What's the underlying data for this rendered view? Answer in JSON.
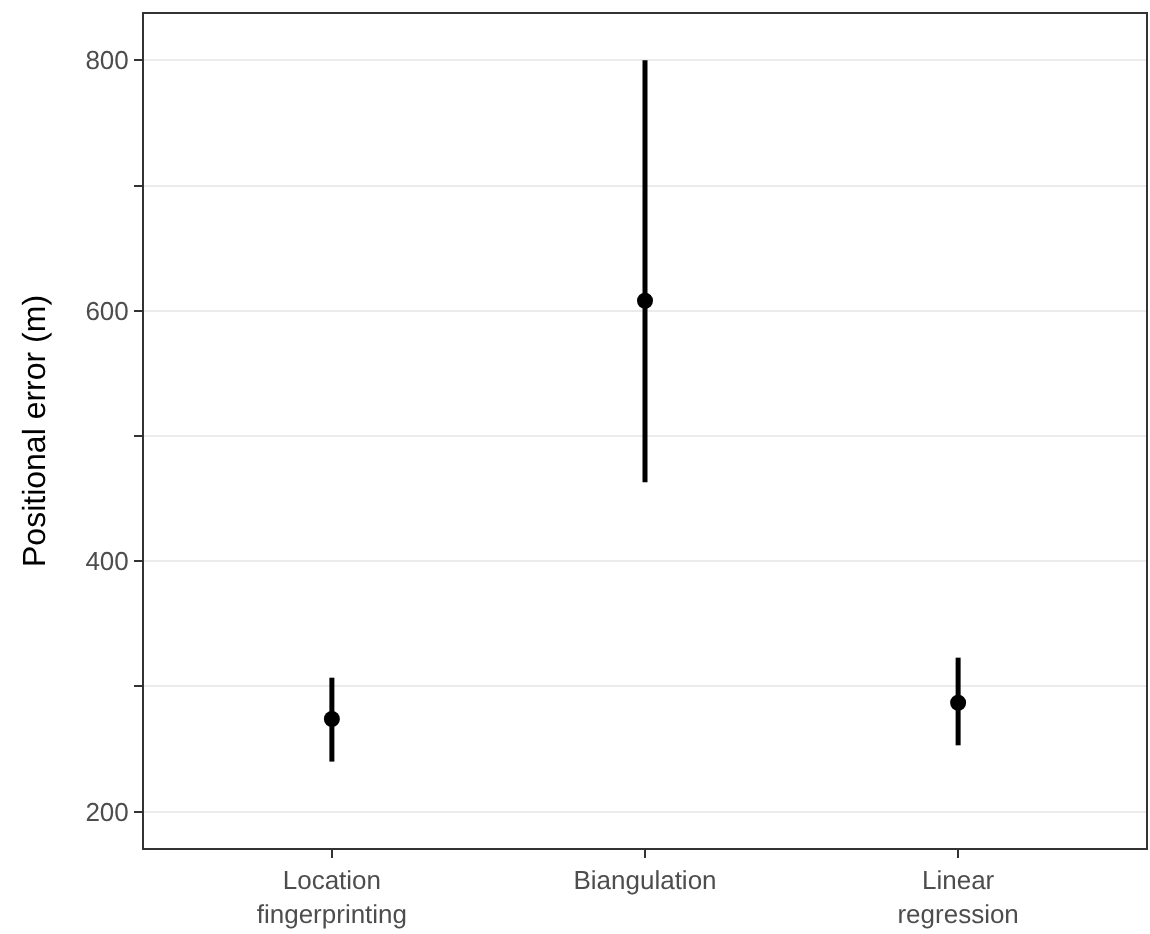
{
  "chart_data": {
    "type": "scatter",
    "ylabel": "Positional error (m)",
    "categories": [
      "Location\nfingerprinting",
      "Biangulation",
      "Linear\nregression"
    ],
    "series": [
      {
        "color": "#000000",
        "values": [
          274,
          608,
          287
        ],
        "errors": [
          [
            240,
            307
          ],
          [
            463,
            800
          ],
          [
            253,
            323
          ]
        ]
      }
    ],
    "ylim": [
      171,
      837
    ],
    "yticks": [
      200,
      {
        "value": 300,
        "label": null
      },
      400,
      {
        "value": 500,
        "label": null
      },
      600,
      {
        "value": 700,
        "label": null
      },
      800
    ],
    "grid": "y",
    "marker": "circle"
  }
}
